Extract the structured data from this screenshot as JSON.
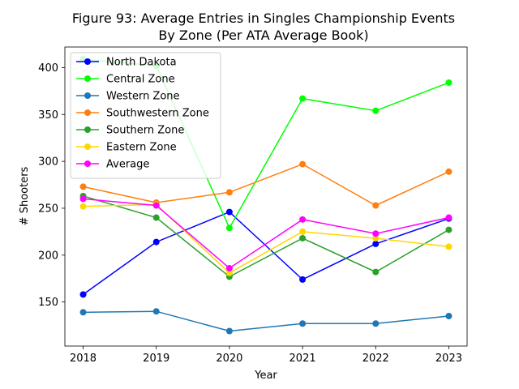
{
  "chart_data": {
    "type": "line",
    "title_line1": "Figure 93: Average Entries in Singles Championship Events",
    "title_line2": "By Zone (Per ATA Average Book)",
    "xlabel": "Year",
    "ylabel": "# Shooters",
    "x": [
      2018,
      2019,
      2020,
      2021,
      2022,
      2023
    ],
    "xlim": [
      2017.75,
      2023.25
    ],
    "ylim": [
      103,
      422
    ],
    "yticks": [
      150,
      200,
      250,
      300,
      350,
      400
    ],
    "legend_position": "upper-left",
    "grid": false,
    "series": [
      {
        "name": "North Dakota",
        "color": "#0000ff",
        "values": [
          158,
          214,
          246,
          174,
          212,
          239
        ]
      },
      {
        "name": "Central Zone",
        "color": "#00ff00",
        "values": [
          409,
          402,
          229,
          367,
          354,
          384
        ]
      },
      {
        "name": "Western Zone",
        "color": "#1f77b4",
        "values": [
          139,
          140,
          119,
          127,
          127,
          135
        ]
      },
      {
        "name": "Southwestern Zone",
        "color": "#ff7f0e",
        "values": [
          273,
          256,
          267,
          297,
          253,
          289
        ]
      },
      {
        "name": "Southern Zone",
        "color": "#2ca02c",
        "values": [
          263,
          240,
          177,
          218,
          182,
          227
        ]
      },
      {
        "name": "Eastern Zone",
        "color": "#ffd700",
        "values": [
          252,
          254,
          181,
          225,
          218,
          209
        ]
      },
      {
        "name": "Average",
        "color": "#ff00ff",
        "values": [
          260,
          253,
          186,
          238,
          223,
          240
        ]
      }
    ]
  }
}
